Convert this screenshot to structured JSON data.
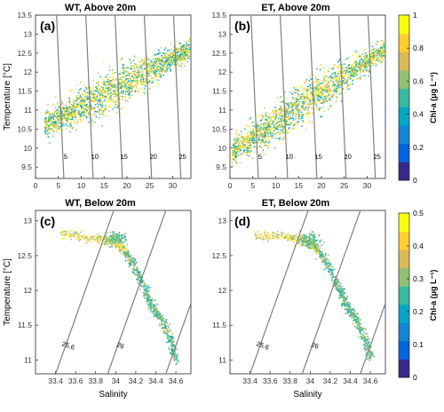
{
  "chart_data": [
    {
      "type": "scatter",
      "panel_label": "(a)",
      "title": "WT, Above 20m",
      "ylabel": "Temperature [°C]",
      "xlabel": "",
      "xlim": [
        0,
        34
      ],
      "ylim": [
        9.2,
        13.5
      ],
      "xticks": [
        0,
        5,
        10,
        15,
        20,
        25,
        30
      ],
      "yticks": [
        9.5,
        10,
        10.5,
        11,
        11.5,
        12,
        12.5,
        13,
        13.5
      ],
      "density_contours": [
        {
          "label": "5",
          "S_at_Tmin": 6.2,
          "S_at_Tmax": 4.6
        },
        {
          "label": "10",
          "S_at_Tmin": 12.6,
          "S_at_Tmax": 11.0
        },
        {
          "label": "15",
          "S_at_Tmin": 19.0,
          "S_at_Tmax": 17.4
        },
        {
          "label": "20",
          "S_at_Tmin": 25.4,
          "S_at_Tmax": 23.8
        },
        {
          "label": "25",
          "S_at_Tmin": 31.8,
          "S_at_Tmax": 30.2
        }
      ],
      "cloud": {
        "s_range": [
          2,
          34
        ],
        "t_at_s_min": 10.6,
        "t_at_s_max": 12.6,
        "spread": 0.45
      },
      "colorbar": {
        "label": "Chl-a (μg L⁻¹)",
        "min": 0,
        "max": 1,
        "ticks": [
          "0",
          "0.2",
          "0.4",
          "0.6",
          "0.8",
          "1"
        ]
      }
    },
    {
      "type": "scatter",
      "panel_label": "(b)",
      "title": "ET, Above 20m",
      "ylabel": "",
      "xlabel": "",
      "xlim": [
        0,
        34
      ],
      "ylim": [
        9.2,
        13.5
      ],
      "xticks": [
        0,
        5,
        10,
        15,
        20,
        25,
        30
      ],
      "yticks": [
        9.5,
        10,
        10.5,
        11,
        11.5,
        12,
        12.5,
        13,
        13.5
      ],
      "density_contours": [
        {
          "label": "5",
          "S_at_Tmin": 6.2,
          "S_at_Tmax": 4.6
        },
        {
          "label": "10",
          "S_at_Tmin": 12.6,
          "S_at_Tmax": 11.0
        },
        {
          "label": "15",
          "S_at_Tmin": 19.0,
          "S_at_Tmax": 17.4
        },
        {
          "label": "20",
          "S_at_Tmin": 25.4,
          "S_at_Tmax": 23.8
        },
        {
          "label": "25",
          "S_at_Tmin": 31.8,
          "S_at_Tmax": 30.2
        }
      ],
      "cloud": {
        "s_range": [
          0.5,
          34
        ],
        "t_at_s_min": 9.9,
        "t_at_s_max": 12.6,
        "spread": 0.45
      },
      "colorbar": null
    },
    {
      "type": "scatter",
      "panel_label": "(c)",
      "title": "WT, Below 20m",
      "ylabel": "Temperature [°C]",
      "xlabel": "Salinity",
      "xlim": [
        33.2,
        34.75
      ],
      "ylim": [
        10.8,
        13.15
      ],
      "xticks": [
        33.4,
        33.6,
        33.8,
        34,
        34.2,
        34.4,
        34.6
      ],
      "yticks": [
        11,
        11.5,
        12,
        12.5,
        13
      ],
      "density_contours": [
        {
          "label": "25.6",
          "S_at_Tmin": 33.4,
          "S_at_Tmax": 33.98
        },
        {
          "label": "26",
          "S_at_Tmin": 33.92,
          "S_at_Tmax": 34.5
        },
        {
          "label": "",
          "S_at_Tmin": 34.5,
          "S_at_Tmax": 35.08
        }
      ],
      "path": [
        [
          33.45,
          12.82
        ],
        [
          33.8,
          12.75
        ],
        [
          34.0,
          12.7
        ],
        [
          34.1,
          12.55
        ],
        [
          34.2,
          12.3
        ],
        [
          34.3,
          12.0
        ],
        [
          34.35,
          11.8
        ],
        [
          34.45,
          11.6
        ],
        [
          34.55,
          11.3
        ],
        [
          34.6,
          11.0
        ]
      ],
      "bump": [
        34.0,
        12.75
      ],
      "colorbar": {
        "label": "Chl-a (μg L⁻¹)",
        "min": 0,
        "max": 0.5,
        "ticks": [
          "0",
          "0.1",
          "0.2",
          "0.3",
          "0.4",
          "0.5"
        ]
      }
    },
    {
      "type": "scatter",
      "panel_label": "(d)",
      "title": "ET, Below 20m",
      "ylabel": "",
      "xlabel": "Salinity",
      "xlim": [
        33.2,
        34.75
      ],
      "ylim": [
        10.8,
        13.15
      ],
      "xticks": [
        33.4,
        33.6,
        33.8,
        34,
        34.2,
        34.4,
        34.6
      ],
      "yticks": [
        11,
        11.5,
        12,
        12.5,
        13
      ],
      "density_contours": [
        {
          "label": "25.6",
          "S_at_Tmin": 33.4,
          "S_at_Tmax": 33.98
        },
        {
          "label": "26",
          "S_at_Tmin": 33.92,
          "S_at_Tmax": 34.5
        },
        {
          "label": "",
          "S_at_Tmin": 34.5,
          "S_at_Tmax": 35.08
        }
      ],
      "path": [
        [
          33.45,
          12.78
        ],
        [
          33.8,
          12.76
        ],
        [
          34.0,
          12.7
        ],
        [
          34.1,
          12.55
        ],
        [
          34.2,
          12.3
        ],
        [
          34.3,
          12.0
        ],
        [
          34.35,
          11.8
        ],
        [
          34.45,
          11.6
        ],
        [
          34.55,
          11.3
        ],
        [
          34.6,
          11.05
        ]
      ],
      "bump": [
        34.0,
        12.72
      ],
      "colorbar": null
    }
  ],
  "colors": {
    "colormap_parula": [
      "#352a87",
      "#0363e1",
      "#1485d4",
      "#06a7c6",
      "#38b99e",
      "#92bf73",
      "#d9ba56",
      "#fcce2e",
      "#f9fb0e"
    ],
    "contour": "#7f7f7f"
  }
}
